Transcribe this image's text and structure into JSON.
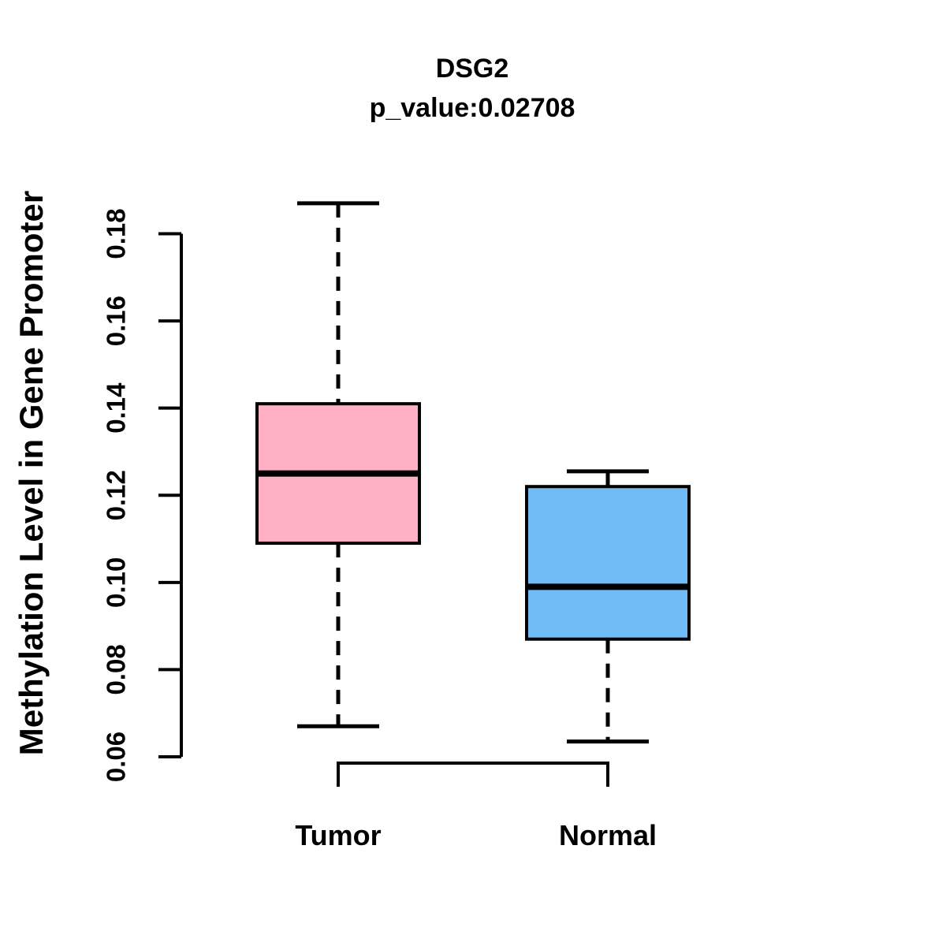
{
  "chart_data": {
    "type": "boxplot",
    "title": "DSG2",
    "subtitle": "p_value:0.02708",
    "ylabel": "Methylation Level in Gene Promoter",
    "xlabel": "",
    "categories": [
      "Tumor",
      "Normal"
    ],
    "yticks": {
      "values": [
        0.06,
        0.08,
        0.1,
        0.12,
        0.14,
        0.16,
        0.18
      ],
      "labels": [
        "0.06",
        "0.08",
        "0.10",
        "0.12",
        "0.14",
        "0.16",
        "0.18"
      ]
    },
    "ylim": [
      0.06,
      0.187
    ],
    "grid": false,
    "legend": "none",
    "series": [
      {
        "name": "Tumor",
        "fill_color": "#FFB0C5",
        "whisker_low": 0.067,
        "q1": 0.109,
        "median": 0.125,
        "q3": 0.141,
        "whisker_high": 0.187
      },
      {
        "name": "Normal",
        "fill_color": "#70BCF6",
        "whisker_low": 0.0635,
        "q1": 0.087,
        "median": 0.099,
        "q3": 0.122,
        "whisker_high": 0.1255
      }
    ],
    "stroke_color": "#000000",
    "background_color": "#FFFFFF"
  }
}
